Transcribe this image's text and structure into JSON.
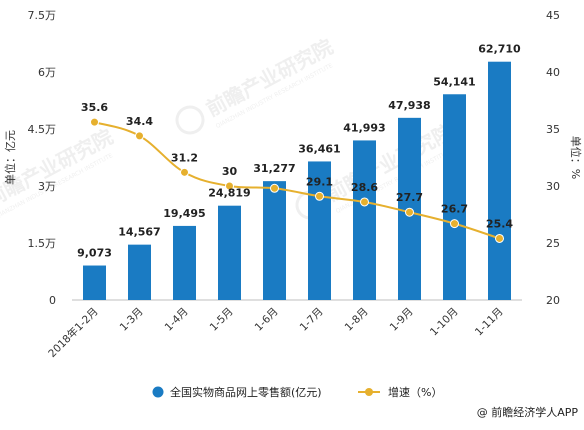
{
  "chart_data": {
    "type": "bar+line",
    "categories": [
      "2018年1-2月",
      "1-3月",
      "1-4月",
      "1-5月",
      "1-6月",
      "1-7月",
      "1-8月",
      "1-9月",
      "1-10月",
      "1-11月"
    ],
    "series": [
      {
        "name": "全国实物商品网上零售额(亿元)",
        "type": "bar",
        "axis": "left",
        "values": [
          9073,
          14567,
          19495,
          24819,
          31277,
          36461,
          41993,
          47938,
          54141,
          62710
        ],
        "labels": [
          "9,073",
          "14,567",
          "19,495",
          "24,819",
          "31,277",
          "36,461",
          "41,993",
          "47,938",
          "54,141",
          "62,710"
        ],
        "color": "#1a7bc3"
      },
      {
        "name": "增速（%）",
        "type": "line",
        "axis": "right",
        "values": [
          35.6,
          34.4,
          31.2,
          30,
          29.8,
          29.1,
          28.6,
          27.7,
          26.7,
          25.4
        ],
        "labels": [
          "35.6",
          "34.4",
          "31.2",
          "30",
          "",
          "29.1",
          "28.6",
          "27.7",
          "26.7",
          "25.4"
        ],
        "color": "#e6b02e"
      }
    ],
    "y_left": {
      "label": "单位：亿元",
      "range": [
        0,
        75000
      ],
      "ticks": [
        0,
        15000,
        30000,
        45000,
        60000,
        75000
      ],
      "tick_labels": [
        "0",
        "1.5万",
        "3万",
        "4.5万",
        "6万",
        "7.5万"
      ]
    },
    "y_right": {
      "label": "单位：%",
      "range": [
        20,
        45
      ],
      "ticks": [
        20,
        25,
        30,
        35,
        40,
        45
      ],
      "tick_labels": [
        "20",
        "25",
        "30",
        "35",
        "40",
        "45"
      ]
    },
    "grid": false,
    "legend": "bottom-center"
  },
  "watermark": {
    "text": "前瞻产业研究院",
    "subtext": "QIANZHAN INDUSTRY RESEARCH INSTITUTE"
  },
  "source": "@ 前瞻经济学人APP"
}
